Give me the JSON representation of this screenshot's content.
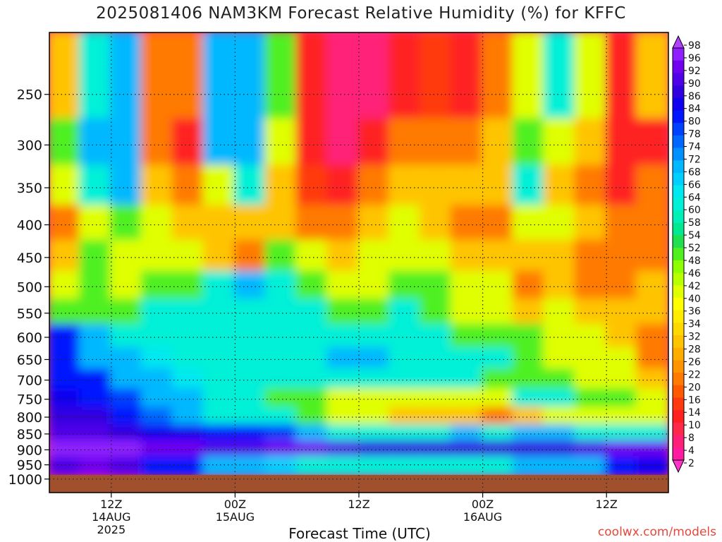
{
  "chart_data": {
    "type": "heatmap",
    "title": "2025081406 NAM3KM Forecast Relative Humidity (%) for KFFC",
    "xlabel": "Forecast Time (UTC)",
    "ylabel": "",
    "credit": "coolwx.com/models",
    "y_axis": {
      "scale": "log",
      "inverted": true,
      "ticks": [
        250,
        300,
        350,
        400,
        450,
        500,
        550,
        600,
        650,
        700,
        750,
        800,
        850,
        900,
        950,
        1000
      ],
      "range": [
        200,
        1050
      ]
    },
    "x_axis": {
      "ticks": [
        {
          "hour": 6,
          "lines": [
            "12Z",
            "14AUG",
            "2025"
          ]
        },
        {
          "hour": 18,
          "lines": [
            "00Z",
            "15AUG"
          ]
        },
        {
          "hour": 30,
          "lines": [
            "12Z"
          ]
        },
        {
          "hour": 42,
          "lines": [
            "00Z",
            "16AUG"
          ]
        },
        {
          "hour": 54,
          "lines": [
            "12Z"
          ]
        }
      ],
      "range": [
        0,
        60
      ]
    },
    "colorbar": {
      "levels": [
        2,
        4,
        8,
        10,
        14,
        16,
        20,
        22,
        26,
        28,
        32,
        34,
        36,
        40,
        42,
        46,
        48,
        52,
        54,
        58,
        60,
        64,
        66,
        68,
        72,
        74,
        78,
        80,
        84,
        86,
        90,
        92,
        96,
        98
      ],
      "colors": [
        "#ff33cc",
        "#ff1aa0",
        "#ff2078",
        "#ff2a4a",
        "#ff2020",
        "#ff3a10",
        "#ff5a00",
        "#ff7a00",
        "#ff9400",
        "#ffae00",
        "#ffc400",
        "#ffd800",
        "#ffec00",
        "#ffff00",
        "#e0ff00",
        "#b8ff00",
        "#8cff00",
        "#50f020",
        "#20e050",
        "#00e890",
        "#00f0b8",
        "#00f0d8",
        "#00e8f0",
        "#00d0ff",
        "#00b8ff",
        "#0090ff",
        "#0068ff",
        "#0040ff",
        "#0018ff",
        "#1000f0",
        "#3000e0",
        "#5000e8",
        "#7000f0",
        "#9020ff",
        "#b040ff"
      ]
    },
    "ground_color": "#a0502d",
    "grid": true,
    "series": [
      {
        "pressure": 250,
        "rh": [
          30,
          60,
          70,
          20,
          20,
          70,
          70,
          50,
          10,
          5,
          5,
          10,
          15,
          10,
          20,
          40,
          60,
          40,
          10,
          30
        ]
      },
      {
        "pressure": 300,
        "rh": [
          50,
          70,
          70,
          20,
          10,
          70,
          70,
          40,
          10,
          5,
          10,
          20,
          20,
          20,
          30,
          50,
          40,
          30,
          10,
          10
        ]
      },
      {
        "pressure": 350,
        "rh": [
          40,
          60,
          70,
          30,
          20,
          40,
          60,
          30,
          15,
          10,
          20,
          30,
          30,
          30,
          30,
          60,
          30,
          20,
          10,
          20
        ]
      },
      {
        "pressure": 400,
        "rh": [
          20,
          40,
          50,
          40,
          30,
          30,
          30,
          30,
          20,
          20,
          30,
          40,
          30,
          20,
          20,
          40,
          40,
          30,
          20,
          20
        ]
      },
      {
        "pressure": 450,
        "rh": [
          30,
          50,
          40,
          40,
          40,
          30,
          20,
          50,
          40,
          30,
          40,
          40,
          40,
          30,
          30,
          30,
          30,
          20,
          20,
          20
        ]
      },
      {
        "pressure": 500,
        "rh": [
          40,
          50,
          40,
          50,
          50,
          60,
          70,
          60,
          50,
          40,
          40,
          50,
          50,
          40,
          40,
          20,
          30,
          20,
          20,
          30
        ]
      },
      {
        "pressure": 550,
        "rh": [
          50,
          50,
          50,
          60,
          60,
          60,
          60,
          60,
          60,
          50,
          50,
          60,
          50,
          40,
          40,
          30,
          40,
          30,
          30,
          30
        ]
      },
      {
        "pressure": 600,
        "rh": [
          80,
          70,
          60,
          60,
          60,
          60,
          60,
          60,
          60,
          60,
          60,
          60,
          60,
          50,
          50,
          50,
          40,
          40,
          30,
          20
        ]
      },
      {
        "pressure": 650,
        "rh": [
          80,
          70,
          70,
          65,
          60,
          60,
          60,
          60,
          60,
          70,
          70,
          60,
          60,
          60,
          60,
          50,
          40,
          40,
          40,
          20
        ]
      },
      {
        "pressure": 700,
        "rh": [
          80,
          80,
          70,
          70,
          65,
          60,
          60,
          60,
          60,
          60,
          60,
          60,
          60,
          60,
          50,
          50,
          50,
          40,
          40,
          30
        ]
      },
      {
        "pressure": 750,
        "rh": [
          84,
          82,
          78,
          70,
          70,
          60,
          60,
          50,
          50,
          40,
          40,
          40,
          40,
          40,
          40,
          60,
          60,
          50,
          50,
          40
        ]
      },
      {
        "pressure": 800,
        "rh": [
          86,
          86,
          82,
          74,
          70,
          60,
          60,
          60,
          50,
          40,
          40,
          30,
          30,
          30,
          20,
          30,
          40,
          40,
          40,
          40
        ]
      },
      {
        "pressure": 850,
        "rh": [
          90,
          90,
          88,
          84,
          84,
          80,
          80,
          78,
          70,
          60,
          60,
          60,
          60,
          70,
          60,
          70,
          70,
          60,
          60,
          60
        ]
      },
      {
        "pressure": 900,
        "rh": [
          96,
          96,
          96,
          92,
          92,
          90,
          90,
          92,
          92,
          90,
          88,
          86,
          86,
          86,
          86,
          88,
          88,
          90,
          92,
          92
        ]
      },
      {
        "pressure": 950,
        "rh": [
          90,
          92,
          90,
          80,
          80,
          70,
          70,
          66,
          60,
          60,
          60,
          60,
          60,
          60,
          60,
          70,
          70,
          70,
          80,
          84
        ]
      }
    ],
    "series_hours": [
      0,
      3,
      6,
      9,
      12,
      15,
      18,
      21,
      24,
      27,
      30,
      33,
      36,
      39,
      42,
      45,
      48,
      51,
      54,
      57
    ]
  }
}
